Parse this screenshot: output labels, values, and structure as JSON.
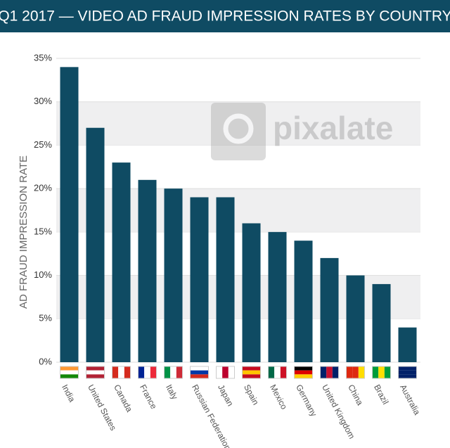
{
  "chart_data": {
    "type": "bar",
    "title": "Q1 2017 — VIDEO AD FRAUD IMPRESSION RATES BY COUNTRY",
    "y_label": "AD FRAUD IMPRESSION RATE",
    "watermark": "pixalate",
    "categories": [
      "India",
      "United States",
      "Canada",
      "France",
      "Italy",
      "Russian Federation",
      "Japan",
      "Spain",
      "Mexico",
      "Germany",
      "United Kingdom",
      "China",
      "Brazil",
      "Australia"
    ],
    "values": [
      34,
      27,
      23,
      21,
      20,
      19,
      19,
      16,
      15,
      14,
      12,
      10,
      9,
      4
    ],
    "color": "#0f4b63",
    "ylim": [
      0,
      35
    ],
    "yticks": [
      {
        "value": 0,
        "label": "0%"
      },
      {
        "value": 5,
        "label": "5%"
      },
      {
        "value": 10,
        "label": "10%"
      },
      {
        "value": 15,
        "label": "15%"
      },
      {
        "value": 20,
        "label": "20%"
      },
      {
        "value": 25,
        "label": "25%"
      },
      {
        "value": 30,
        "label": "30%"
      },
      {
        "value": 35,
        "label": "35%"
      }
    ],
    "grid": true
  }
}
